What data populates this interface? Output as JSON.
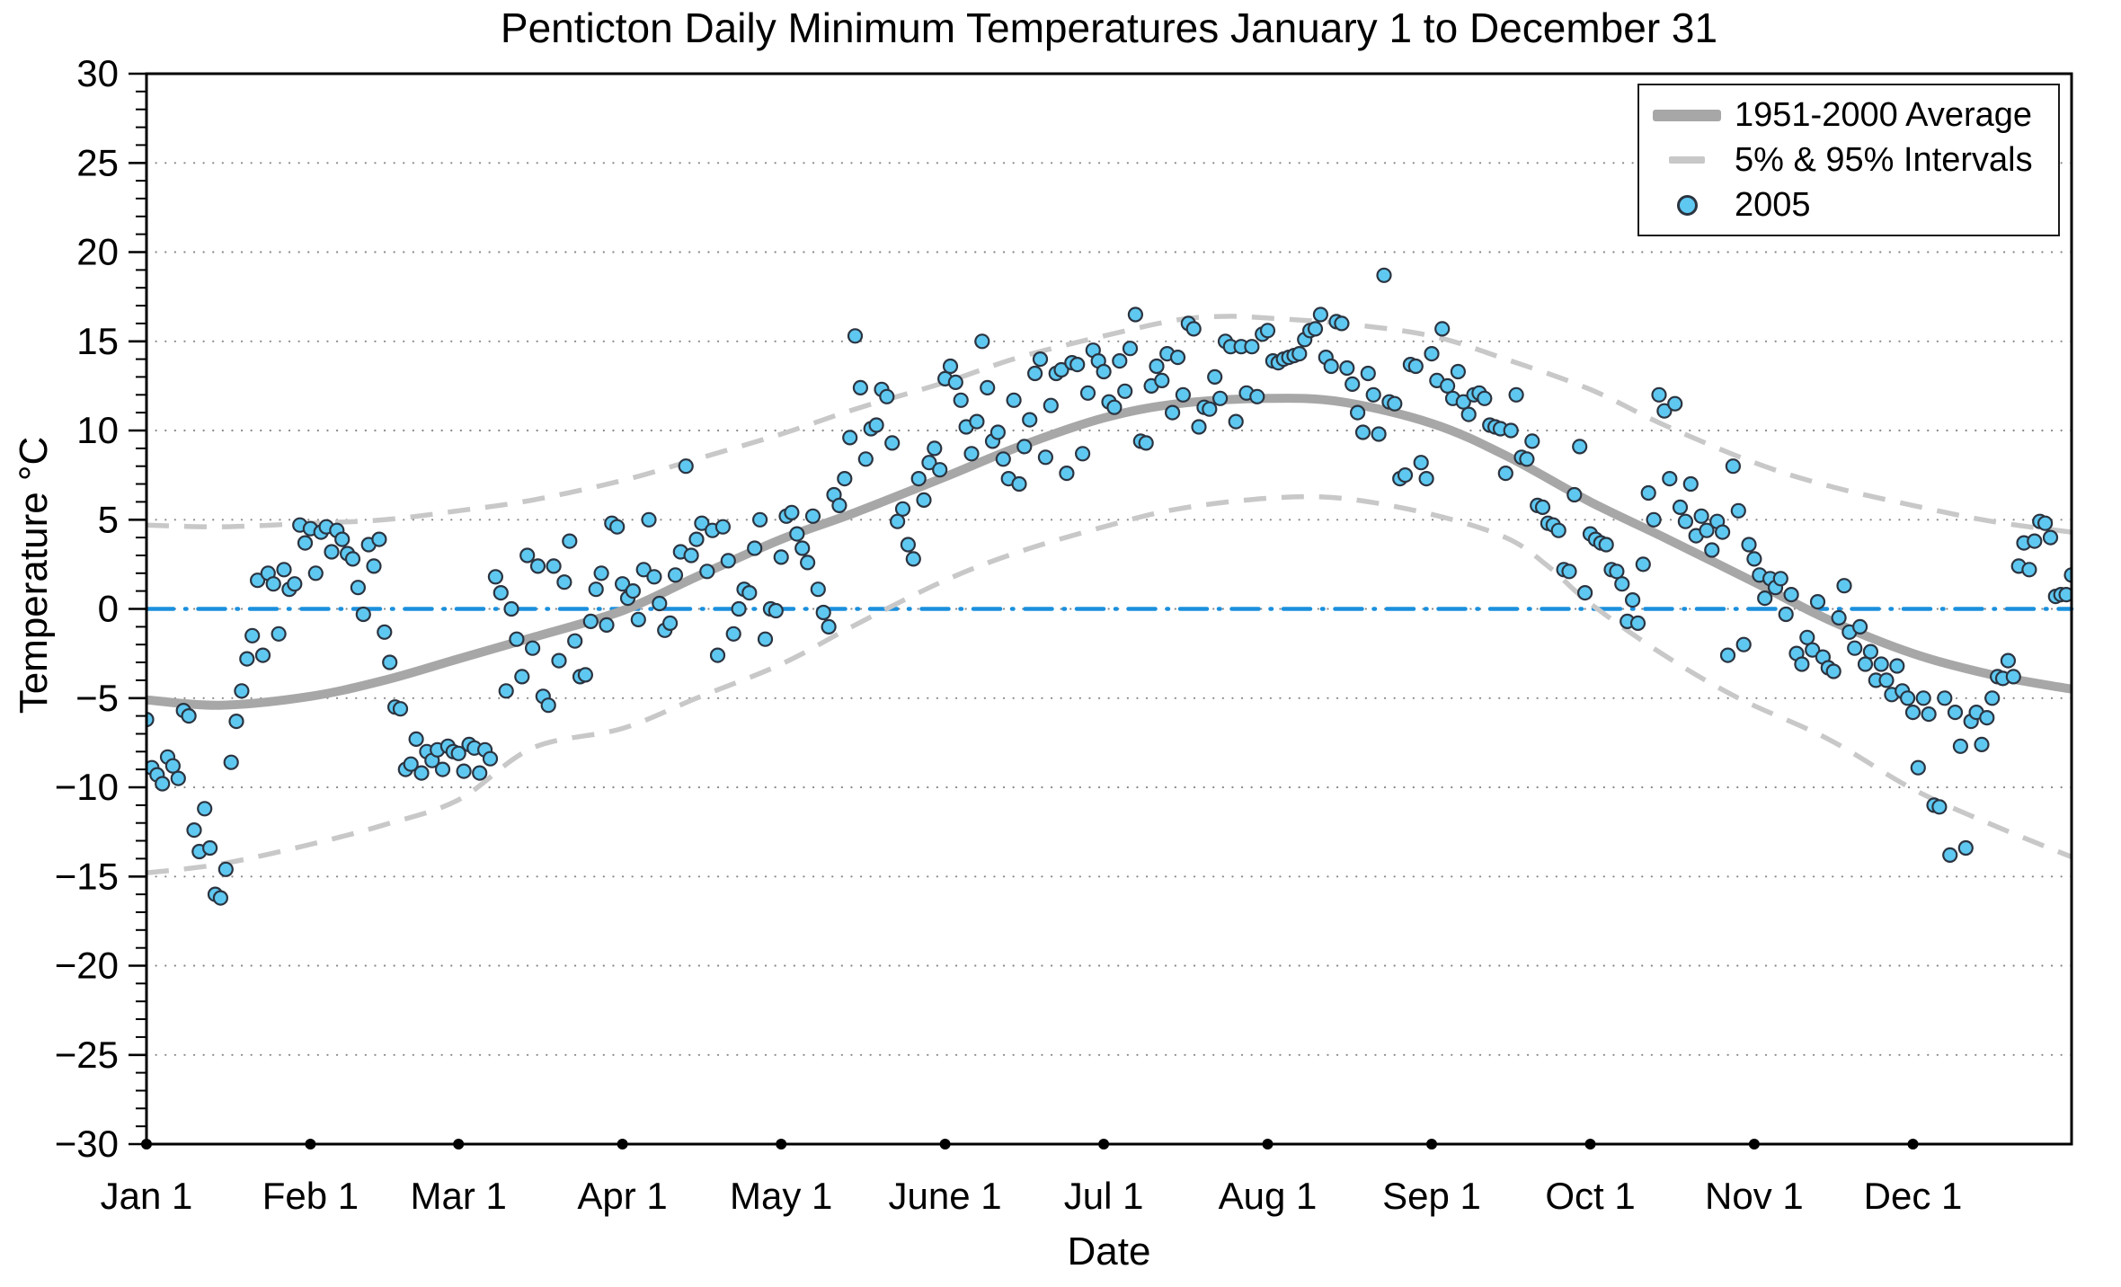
{
  "chart": {
    "title": "Penticton Daily Minimum Temperatures January 1 to December 31",
    "ylabel": "Temperature °C",
    "xlabel": "Date",
    "legend": [
      {
        "label": "1951-2000 Average"
      },
      {
        "label": "5% & 95% Intervals"
      },
      {
        "label": "2005"
      }
    ]
  },
  "chart_data": {
    "type": "scatter",
    "title": "Penticton Daily Minimum Temperatures January 1 to December 31",
    "xlabel": "Date",
    "ylabel": "Temperature °C",
    "ylim": [
      -30,
      30
    ],
    "xlim_days": [
      1,
      365
    ],
    "grid": "dotted horizontal every 5C",
    "legend_position": "upper right",
    "yticks": [
      {
        "value": 30,
        "label": "30"
      },
      {
        "value": 25,
        "label": "25"
      },
      {
        "value": 20,
        "label": "20"
      },
      {
        "value": 15,
        "label": "15"
      },
      {
        "value": 10,
        "label": "10"
      },
      {
        "value": 5,
        "label": "5"
      },
      {
        "value": 0,
        "label": "0"
      },
      {
        "value": -5,
        "label": "−5"
      },
      {
        "value": -10,
        "label": "−10"
      },
      {
        "value": -15,
        "label": "−15"
      },
      {
        "value": -20,
        "label": "−20"
      },
      {
        "value": -25,
        "label": "−25"
      },
      {
        "value": -30,
        "label": "−30"
      }
    ],
    "minor_tick_step": 1,
    "months": [
      {
        "label": "Jan 1",
        "day": 1
      },
      {
        "label": "Feb 1",
        "day": 32
      },
      {
        "label": "Mar 1",
        "day": 60
      },
      {
        "label": "Apr 1",
        "day": 91
      },
      {
        "label": "May 1",
        "day": 121
      },
      {
        "label": "June 1",
        "day": 152
      },
      {
        "label": "Jul 1",
        "day": 182
      },
      {
        "label": "Aug 1",
        "day": 213
      },
      {
        "label": "Sep 1",
        "day": 244
      },
      {
        "label": "Oct 1",
        "day": 274
      },
      {
        "label": "Nov 1",
        "day": 305
      },
      {
        "label": "Dec 1",
        "day": 335
      }
    ],
    "zero_line": {
      "value": 0,
      "style": "dash-dot",
      "color": "#1b90dd"
    },
    "colors": {
      "scatter_fill": "#5ec8f1",
      "scatter_edge": "#2b3440",
      "average": "#a7a7a7",
      "intervals": "#c8c8c8",
      "zero": "#1b90dd",
      "grid": "#8a8a8a",
      "axis": "#000000"
    },
    "series": [
      {
        "name": "1951-2000 Average",
        "type": "line",
        "style": "solid-thick",
        "points": [
          [
            1,
            -5.1
          ],
          [
            15,
            -5.4
          ],
          [
            32,
            -4.9
          ],
          [
            46,
            -4.0
          ],
          [
            60,
            -2.8
          ],
          [
            74,
            -1.6
          ],
          [
            91,
            -0.1
          ],
          [
            105,
            1.8
          ],
          [
            121,
            3.9
          ],
          [
            135,
            5.4
          ],
          [
            152,
            7.4
          ],
          [
            166,
            9.1
          ],
          [
            182,
            10.7
          ],
          [
            196,
            11.5
          ],
          [
            213,
            11.8
          ],
          [
            227,
            11.6
          ],
          [
            244,
            10.4
          ],
          [
            258,
            8.6
          ],
          [
            274,
            6.0
          ],
          [
            288,
            4.0
          ],
          [
            305,
            1.5
          ],
          [
            319,
            -0.6
          ],
          [
            335,
            -2.5
          ],
          [
            350,
            -3.7
          ],
          [
            365,
            -4.5
          ]
        ]
      },
      {
        "name": "95% Interval",
        "type": "line",
        "style": "dashed",
        "points": [
          [
            1,
            4.7
          ],
          [
            15,
            4.6
          ],
          [
            32,
            4.8
          ],
          [
            46,
            5.0
          ],
          [
            60,
            5.5
          ],
          [
            74,
            6.1
          ],
          [
            91,
            7.2
          ],
          [
            105,
            8.4
          ],
          [
            121,
            9.8
          ],
          [
            135,
            11.2
          ],
          [
            152,
            12.7
          ],
          [
            166,
            14.1
          ],
          [
            182,
            15.3
          ],
          [
            196,
            16.2
          ],
          [
            205,
            16.4
          ],
          [
            213,
            16.3
          ],
          [
            227,
            16.0
          ],
          [
            244,
            15.3
          ],
          [
            258,
            14.0
          ],
          [
            274,
            12.3
          ],
          [
            288,
            10.3
          ],
          [
            305,
            8.2
          ],
          [
            319,
            6.9
          ],
          [
            335,
            5.8
          ],
          [
            350,
            4.9
          ],
          [
            365,
            4.3
          ]
        ]
      },
      {
        "name": "5% Interval",
        "type": "line",
        "style": "dashed",
        "points": [
          [
            1,
            -14.8
          ],
          [
            15,
            -14.3
          ],
          [
            32,
            -13.2
          ],
          [
            46,
            -12.1
          ],
          [
            60,
            -10.7
          ],
          [
            74,
            -7.8
          ],
          [
            91,
            -6.7
          ],
          [
            105,
            -5.0
          ],
          [
            121,
            -3.1
          ],
          [
            135,
            -0.9
          ],
          [
            152,
            1.6
          ],
          [
            166,
            3.2
          ],
          [
            182,
            4.6
          ],
          [
            196,
            5.6
          ],
          [
            213,
            6.2
          ],
          [
            227,
            6.2
          ],
          [
            244,
            5.3
          ],
          [
            258,
            4.0
          ],
          [
            266,
            2.4
          ],
          [
            274,
            0.3
          ],
          [
            288,
            -2.6
          ],
          [
            302,
            -5.0
          ],
          [
            319,
            -7.3
          ],
          [
            335,
            -10.1
          ],
          [
            350,
            -12.1
          ],
          [
            365,
            -13.9
          ]
        ]
      }
    ],
    "scatter_series": {
      "name": "2005",
      "x_unit": "day_of_year_starting_at_1",
      "values": [
        -6.2,
        -8.9,
        -9.3,
        -9.8,
        -8.3,
        -8.8,
        -9.5,
        -5.7,
        -6.0,
        -12.4,
        -13.6,
        -11.2,
        -13.4,
        -16.0,
        -16.2,
        -14.6,
        -8.6,
        -6.3,
        -4.6,
        -2.8,
        -1.5,
        1.6,
        -2.6,
        2.0,
        1.4,
        -1.4,
        2.2,
        1.1,
        1.4,
        4.7,
        3.7,
        4.5,
        2.0,
        4.3,
        4.6,
        3.2,
        4.4,
        3.9,
        3.1,
        2.8,
        1.2,
        -0.3,
        3.6,
        2.4,
        3.9,
        -1.3,
        -3.0,
        -5.5,
        -5.6,
        -9.0,
        -8.7,
        -7.3,
        -9.2,
        -8.0,
        -8.5,
        -7.9,
        -9.0,
        -7.7,
        -8.0,
        -8.1,
        -9.1,
        -7.6,
        -7.8,
        -9.2,
        -7.9,
        -8.4,
        1.8,
        0.9,
        -4.6,
        0.0,
        -1.7,
        -3.8,
        3.0,
        -2.2,
        2.4,
        -4.9,
        -5.4,
        2.4,
        -2.9,
        1.5,
        3.8,
        -1.8,
        -3.8,
        -3.7,
        -0.7,
        1.1,
        2.0,
        -0.9,
        4.8,
        4.6,
        1.4,
        0.6,
        1.0,
        -0.6,
        2.2,
        5.0,
        1.8,
        0.3,
        -1.2,
        -0.8,
        1.9,
        3.2,
        8.0,
        3.0,
        3.9,
        4.8,
        2.1,
        4.4,
        -2.6,
        4.6,
        2.7,
        -1.4,
        0.0,
        1.1,
        0.9,
        3.4,
        5.0,
        -1.7,
        0.0,
        -0.1,
        2.9,
        5.2,
        5.4,
        4.2,
        3.4,
        2.6,
        5.2,
        1.1,
        -0.2,
        -1.0,
        6.4,
        5.8,
        7.3,
        9.6,
        15.3,
        12.4,
        8.4,
        10.1,
        10.3,
        12.3,
        11.9,
        9.3,
        4.9,
        5.6,
        3.6,
        2.8,
        7.3,
        6.1,
        8.2,
        9.0,
        7.8,
        12.9,
        13.6,
        12.7,
        11.7,
        10.2,
        8.7,
        10.5,
        15.0,
        12.4,
        9.4,
        9.9,
        8.4,
        7.3,
        11.7,
        7.0,
        9.1,
        10.6,
        13.2,
        14.0,
        8.5,
        11.4,
        13.2,
        13.4,
        7.6,
        13.8,
        13.7,
        8.7,
        12.1,
        14.5,
        13.9,
        13.3,
        11.6,
        11.3,
        13.9,
        12.2,
        14.6,
        16.5,
        9.4,
        9.3,
        12.5,
        13.6,
        12.8,
        14.3,
        11.0,
        14.1,
        12.0,
        16.0,
        15.7,
        10.2,
        11.3,
        11.2,
        13.0,
        11.8,
        15.0,
        14.7,
        10.5,
        14.7,
        12.1,
        14.7,
        11.9,
        15.4,
        15.6,
        13.9,
        13.8,
        14.0,
        14.1,
        14.2,
        14.3,
        15.1,
        15.6,
        15.7,
        16.5,
        14.1,
        13.6,
        16.1,
        16.0,
        13.5,
        12.6,
        11.0,
        9.9,
        13.2,
        12.0,
        9.8,
        18.7,
        11.6,
        11.5,
        7.3,
        7.5,
        13.7,
        13.6,
        8.2,
        7.3,
        14.3,
        12.8,
        15.7,
        12.5,
        11.8,
        13.3,
        11.6,
        10.9,
        12.0,
        12.1,
        11.8,
        10.3,
        10.2,
        10.1,
        7.6,
        10.0,
        12.0,
        8.5,
        8.4,
        9.4,
        5.8,
        5.7,
        4.8,
        4.7,
        4.4,
        2.2,
        2.1,
        6.4,
        9.1,
        0.9,
        4.2,
        3.9,
        3.7,
        3.6,
        2.2,
        2.1,
        1.4,
        -0.7,
        0.5,
        -0.8,
        2.5,
        6.5,
        5.0,
        12.0,
        11.1,
        7.3,
        11.5,
        5.7,
        4.9,
        7.0,
        4.1,
        5.2,
        4.4,
        3.3,
        4.9,
        4.3,
        -2.6,
        8.0,
        5.5,
        -2.0,
        3.6,
        2.8,
        1.9,
        0.6,
        1.7,
        1.2,
        1.7,
        -0.3,
        0.8,
        -2.5,
        -3.1,
        -1.6,
        -2.3,
        0.4,
        -2.7,
        -3.3,
        -3.5,
        -0.5,
        1.3,
        -1.3,
        -2.2,
        -1.0,
        -3.1,
        -2.4,
        -4.0,
        -3.1,
        -4.0,
        -4.8,
        -3.2,
        -4.6,
        -5.0,
        -5.8,
        -8.9,
        -5.0,
        -5.9,
        -11.0,
        -11.1,
        -5.0,
        -13.8,
        -5.8,
        -7.7,
        -13.4,
        -6.3,
        -5.8,
        -7.6,
        -6.1,
        -5.0,
        -3.8,
        -3.9,
        -2.9,
        -3.8,
        2.4,
        3.7,
        2.2,
        3.8,
        4.9,
        4.8,
        4.0,
        0.7,
        0.8,
        0.8,
        1.9
      ]
    }
  }
}
